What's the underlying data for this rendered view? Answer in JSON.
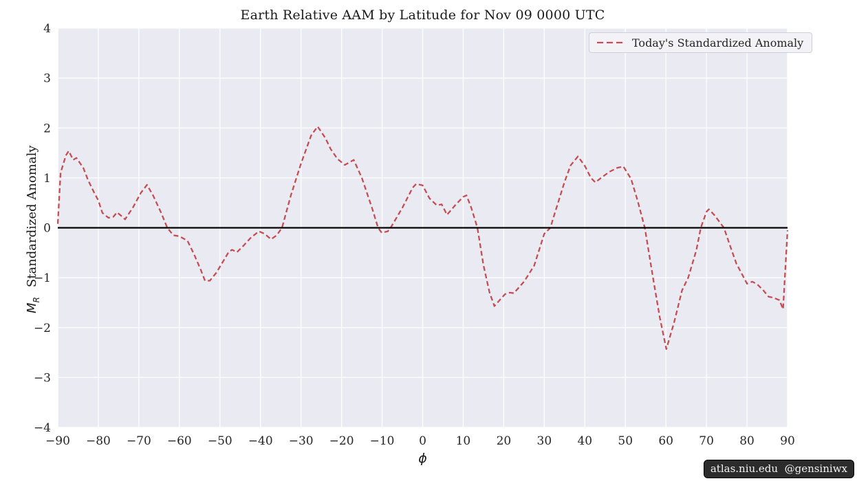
{
  "title": "Earth Relative AAM by Latitude for Nov 09 0000 UTC",
  "legend": {
    "label": "Today's Standardized Anomaly"
  },
  "watermark": "atlas.niu.edu  @gensiniwx",
  "xlabel": "ϕ",
  "ylabel": {
    "math_m": "M",
    "math_sub": "R",
    "text": "Standardized Anomaly"
  },
  "colors": {
    "line": "#c44e52",
    "zero_line": "#000000",
    "plot_bg": "#eaeaf2",
    "grid": "#ffffff",
    "text": "#262626",
    "legend_bg": "#f2f2f7",
    "watermark_bg": "#0f0f0f"
  },
  "chart_data": {
    "type": "line",
    "title": "Earth Relative AAM by Latitude for Nov 09 0000 UTC",
    "xlabel": "ϕ",
    "ylabel": "M_R Standardized Anomaly",
    "xlim": [
      -90,
      90
    ],
    "ylim": [
      -4,
      4
    ],
    "xticks": [
      -90,
      -80,
      -70,
      -60,
      -50,
      -40,
      -30,
      -20,
      -10,
      0,
      10,
      20,
      30,
      40,
      50,
      60,
      70,
      80,
      90
    ],
    "yticks": [
      -4,
      -3,
      -2,
      -1,
      0,
      1,
      2,
      3,
      4
    ],
    "grid": true,
    "zero_line": true,
    "legend_position": "upper right",
    "series": [
      {
        "name": "Today's Standardized Anomaly",
        "style": "dashed",
        "color": "#c44e52",
        "points": [
          [
            -90,
            0.08
          ],
          [
            -89.3,
            1.1
          ],
          [
            -88,
            1.45
          ],
          [
            -87.3,
            1.54
          ],
          [
            -86.2,
            1.36
          ],
          [
            -85.4,
            1.4
          ],
          [
            -83.7,
            1.2
          ],
          [
            -82.5,
            0.95
          ],
          [
            -81,
            0.7
          ],
          [
            -80,
            0.55
          ],
          [
            -79,
            0.3
          ],
          [
            -77.5,
            0.2
          ],
          [
            -76.3,
            0.22
          ],
          [
            -75.4,
            0.31
          ],
          [
            -74.5,
            0.25
          ],
          [
            -73.4,
            0.17
          ],
          [
            -71.5,
            0.4
          ],
          [
            -69.5,
            0.7
          ],
          [
            -68,
            0.86
          ],
          [
            -66.5,
            0.65
          ],
          [
            -64.5,
            0.3
          ],
          [
            -63,
            0.0
          ],
          [
            -61.5,
            -0.15
          ],
          [
            -60,
            -0.17
          ],
          [
            -58,
            -0.26
          ],
          [
            -56.4,
            -0.53
          ],
          [
            -54.7,
            -0.85
          ],
          [
            -53.7,
            -1.06
          ],
          [
            -52.5,
            -1.06
          ],
          [
            -50.9,
            -0.9
          ],
          [
            -49.2,
            -0.67
          ],
          [
            -47.8,
            -0.48
          ],
          [
            -47,
            -0.44
          ],
          [
            -45.8,
            -0.49
          ],
          [
            -44.1,
            -0.35
          ],
          [
            -42.4,
            -0.2
          ],
          [
            -40.4,
            -0.07
          ],
          [
            -39,
            -0.12
          ],
          [
            -37.4,
            -0.23
          ],
          [
            -36,
            -0.15
          ],
          [
            -34.7,
            0.0
          ],
          [
            -32.5,
            0.65
          ],
          [
            -30,
            1.29
          ],
          [
            -27.5,
            1.85
          ],
          [
            -25.9,
            2.03
          ],
          [
            -24,
            1.8
          ],
          [
            -22.7,
            1.58
          ],
          [
            -21,
            1.38
          ],
          [
            -19.2,
            1.26
          ],
          [
            -17,
            1.36
          ],
          [
            -15,
            1.0
          ],
          [
            -12.5,
            0.4
          ],
          [
            -11,
            0.0
          ],
          [
            -10.1,
            -0.1
          ],
          [
            -8.6,
            -0.07
          ],
          [
            -7.9,
            0.0
          ],
          [
            -5,
            0.4
          ],
          [
            -2.5,
            0.8
          ],
          [
            -1.6,
            0.88
          ],
          [
            0,
            0.85
          ],
          [
            1.7,
            0.59
          ],
          [
            3.5,
            0.45
          ],
          [
            4.7,
            0.47
          ],
          [
            6,
            0.26
          ],
          [
            8,
            0.45
          ],
          [
            10,
            0.62
          ],
          [
            10.8,
            0.65
          ],
          [
            12,
            0.4
          ],
          [
            13.5,
            0.0
          ],
          [
            15,
            -0.75
          ],
          [
            16.5,
            -1.3
          ],
          [
            17.7,
            -1.57
          ],
          [
            19,
            -1.45
          ],
          [
            20.3,
            -1.33
          ],
          [
            21.5,
            -1.3
          ],
          [
            22.5,
            -1.31
          ],
          [
            25,
            -1.08
          ],
          [
            27.5,
            -0.76
          ],
          [
            30,
            -0.12
          ],
          [
            31.5,
            0.0
          ],
          [
            32.5,
            0.27
          ],
          [
            35,
            0.92
          ],
          [
            36.5,
            1.25
          ],
          [
            38.3,
            1.43
          ],
          [
            40,
            1.24
          ],
          [
            41.5,
            1.0
          ],
          [
            42.6,
            0.91
          ],
          [
            44,
            1.0
          ],
          [
            46,
            1.12
          ],
          [
            48,
            1.2
          ],
          [
            49.5,
            1.23
          ],
          [
            51.4,
            0.98
          ],
          [
            53,
            0.55
          ],
          [
            54.8,
            0.0
          ],
          [
            57,
            -1.09
          ],
          [
            58.5,
            -1.8
          ],
          [
            60.1,
            -2.43
          ],
          [
            62,
            -1.9
          ],
          [
            64,
            -1.25
          ],
          [
            65.5,
            -1.0
          ],
          [
            67.5,
            -0.45
          ],
          [
            68.6,
            0.0
          ],
          [
            70,
            0.32
          ],
          [
            70.6,
            0.37
          ],
          [
            72,
            0.25
          ],
          [
            74.3,
            0.0
          ],
          [
            76,
            -0.4
          ],
          [
            77.4,
            -0.72
          ],
          [
            80,
            -1.12
          ],
          [
            81.3,
            -1.08
          ],
          [
            82.5,
            -1.13
          ],
          [
            84,
            -1.25
          ],
          [
            85.3,
            -1.38
          ],
          [
            86.5,
            -1.4
          ],
          [
            88,
            -1.45
          ],
          [
            88.9,
            -1.63
          ],
          [
            90,
            -0.05
          ]
        ]
      }
    ]
  }
}
